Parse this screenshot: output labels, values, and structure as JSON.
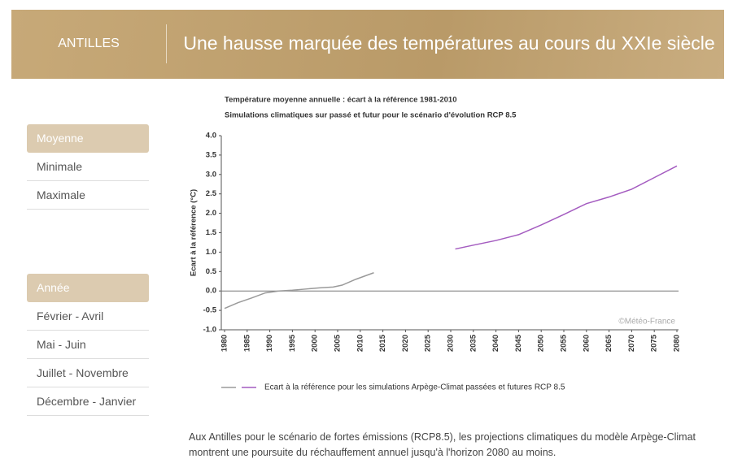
{
  "header": {
    "region": "ANTILLES",
    "title": "Une hausse marquée des températures au cours du XXIe siècle"
  },
  "sidebar": {
    "groups": [
      {
        "items": [
          "Moyenne",
          "Minimale",
          "Maximale"
        ]
      },
      {
        "items": [
          "Année",
          "Février - Avril",
          "Mai - Juin",
          "Juillet - Novembre",
          "Décembre - Janvier"
        ]
      }
    ]
  },
  "chart_data": {
    "type": "line",
    "title": "Température moyenne annuelle : écart à la référence 1981-2010",
    "subtitle": "Simulations climatiques sur passé et futur pour le scénario d'évolution RCP 8.5",
    "y_label": "Ecart à la référence (°C)",
    "credit": "©Météo-France",
    "xlim": [
      1980,
      2080
    ],
    "xticks": [
      1980,
      1985,
      1990,
      1995,
      2000,
      2005,
      2010,
      2015,
      2020,
      2025,
      2030,
      2035,
      2040,
      2045,
      2050,
      2055,
      2060,
      2065,
      2070,
      2075,
      2080
    ],
    "ylim": [
      -1,
      4
    ],
    "yticks": [
      {
        "value": -1,
        "label": "-1.0"
      },
      -0.5,
      {
        "value": 0,
        "label": "0.0"
      },
      0.5,
      {
        "value": 1,
        "label": "1.0"
      },
      1.5,
      {
        "value": 2,
        "label": "2.0"
      },
      2.5,
      {
        "value": 3,
        "label": "3.0"
      },
      3.5,
      {
        "value": 4,
        "label": "4.0"
      }
    ],
    "series": [
      {
        "color": "#9a9a9a",
        "x": [
          1980,
          1983,
          1986,
          1989,
          1992,
          1995,
          1998,
          2001,
          2004,
          2006,
          2009,
          2013
        ],
        "values": [
          -0.45,
          -0.3,
          -0.18,
          -0.05,
          0.0,
          0.02,
          0.05,
          0.08,
          0.1,
          0.15,
          0.3,
          0.47
        ]
      },
      {
        "name": "Ecart à la référence pour les simulations Arpège-Climat passées et futures RCP 8.5",
        "color": "#a45cc0",
        "x": [
          2031,
          2035,
          2040,
          2045,
          2050,
          2055,
          2060,
          2065,
          2070,
          2075,
          2080
        ],
        "values": [
          1.08,
          1.18,
          1.3,
          1.45,
          1.7,
          1.97,
          2.25,
          2.42,
          2.62,
          2.92,
          3.22
        ]
      }
    ]
  },
  "text": {
    "paragraph": "Aux Antilles pour le scénario de fortes émissions (RCP8.5), les projections climatiques du modèle Arpège-Climat montrent une poursuite du réchauffement annuel jusqu'à l'horizon 2080 au moins."
  }
}
